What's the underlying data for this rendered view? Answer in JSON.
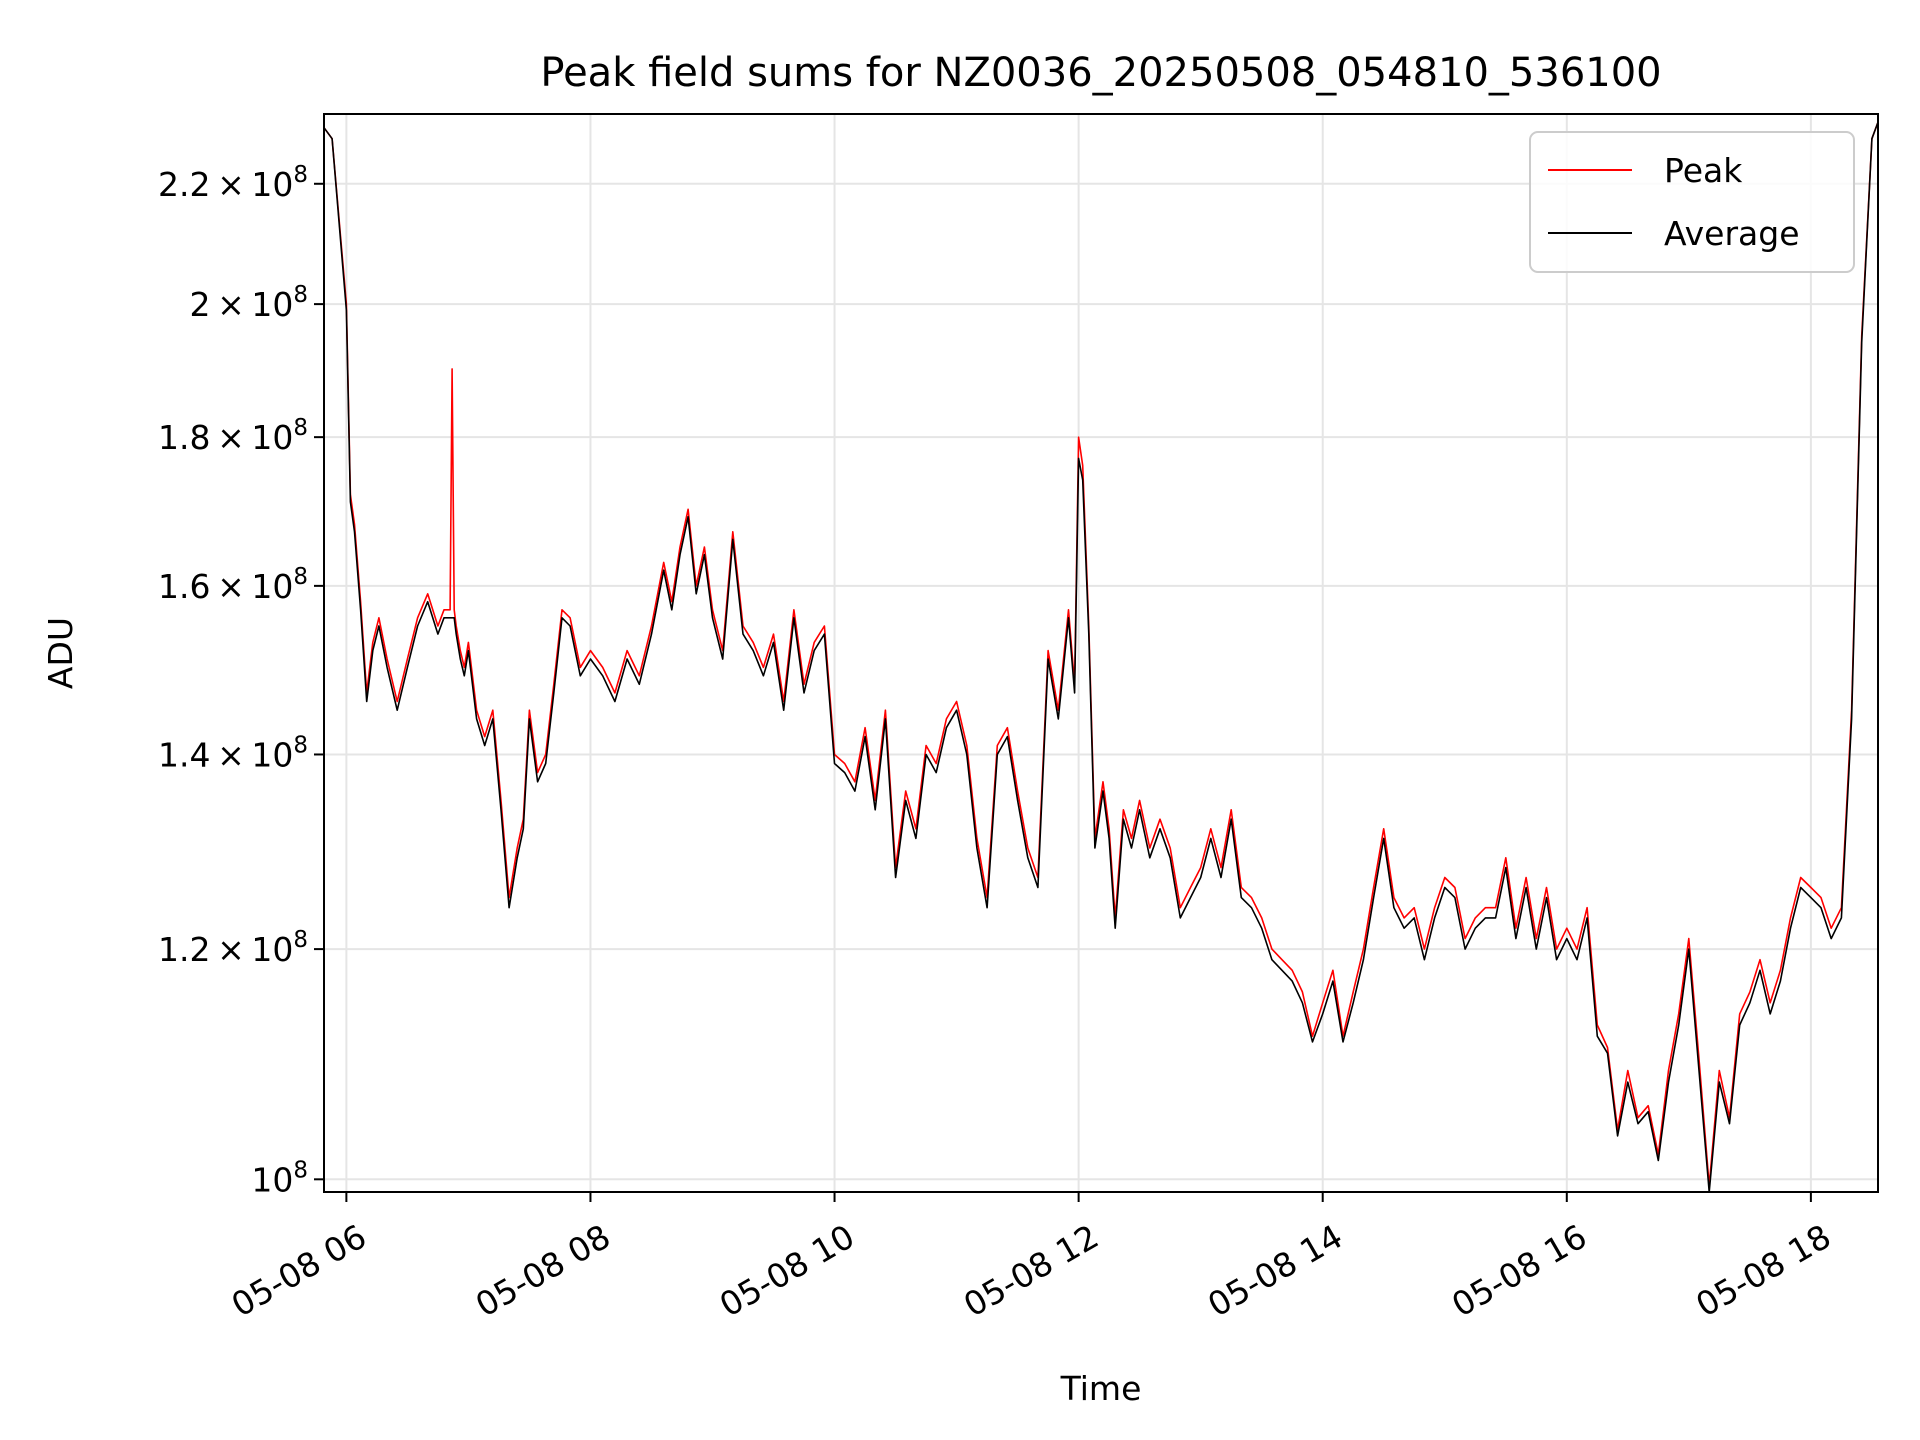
{
  "chart_data": {
    "type": "line",
    "title": "Peak field sums for NZ0036_20250508_054810_536100",
    "xlabel": "Time",
    "ylabel": "ADU",
    "y_scale": "log",
    "grid": true,
    "legend_placement": "top-right",
    "xlim": [
      "2025-05-08T05:49",
      "2025-05-08T18:33"
    ],
    "ylim": [
      99000000,
      232500000
    ],
    "x_ticks": [
      {
        "value": "2025-05-08T06:00",
        "label": "05-08 06"
      },
      {
        "value": "2025-05-08T08:00",
        "label": "05-08 08"
      },
      {
        "value": "2025-05-08T10:00",
        "label": "05-08 10"
      },
      {
        "value": "2025-05-08T12:00",
        "label": "05-08 12"
      },
      {
        "value": "2025-05-08T14:00",
        "label": "05-08 14"
      },
      {
        "value": "2025-05-08T16:00",
        "label": "05-08 16"
      },
      {
        "value": "2025-05-08T18:00",
        "label": "05-08 18"
      }
    ],
    "y_ticks": [
      {
        "value": 100000000,
        "mantissa": "",
        "exp": "8"
      },
      {
        "value": 120000000,
        "mantissa": "1.2",
        "exp": "8"
      },
      {
        "value": 140000000,
        "mantissa": "1.4",
        "exp": "8"
      },
      {
        "value": 160000000,
        "mantissa": "1.6",
        "exp": "8"
      },
      {
        "value": 180000000,
        "mantissa": "1.8",
        "exp": "8"
      },
      {
        "value": 200000000,
        "mantissa": "2",
        "exp": "8"
      },
      {
        "value": 220000000,
        "mantissa": "2.2",
        "exp": "8"
      }
    ],
    "series": [
      {
        "name": "Peak",
        "color": "#ff0000",
        "x": [
          "05:49",
          "05:53",
          "06:00",
          "06:02",
          "06:04",
          "06:07",
          "06:10",
          "06:13",
          "06:16",
          "06:20",
          "06:25",
          "06:30",
          "06:35",
          "06:40",
          "06:45",
          "06:48",
          "06:51",
          "06:52",
          "06:53",
          "06:54",
          "06:56",
          "06:58",
          "07:00",
          "07:04",
          "07:08",
          "07:12",
          "07:16",
          "07:20",
          "07:24",
          "07:27",
          "07:30",
          "07:34",
          "07:38",
          "07:42",
          "07:46",
          "07:50",
          "07:55",
          "08:00",
          "08:06",
          "08:12",
          "08:18",
          "08:24",
          "08:30",
          "08:36",
          "08:40",
          "08:44",
          "08:48",
          "08:52",
          "08:56",
          "09:00",
          "09:05",
          "09:10",
          "09:15",
          "09:20",
          "09:25",
          "09:30",
          "09:35",
          "09:40",
          "09:45",
          "09:50",
          "09:55",
          "10:00",
          "10:05",
          "10:10",
          "10:15",
          "10:20",
          "10:25",
          "10:30",
          "10:35",
          "10:40",
          "10:45",
          "10:50",
          "10:55",
          "11:00",
          "11:05",
          "11:10",
          "11:15",
          "11:20",
          "11:25",
          "11:30",
          "11:35",
          "11:40",
          "11:45",
          "11:50",
          "11:55",
          "11:58",
          "12:00",
          "12:02",
          "12:05",
          "12:08",
          "12:12",
          "12:15",
          "12:18",
          "12:22",
          "12:26",
          "12:30",
          "12:35",
          "12:40",
          "12:45",
          "12:50",
          "12:55",
          "13:00",
          "13:05",
          "13:10",
          "13:15",
          "13:20",
          "13:25",
          "13:30",
          "13:35",
          "13:40",
          "13:45",
          "13:50",
          "13:55",
          "14:00",
          "14:05",
          "14:10",
          "14:15",
          "14:20",
          "14:25",
          "14:30",
          "14:35",
          "14:40",
          "14:45",
          "14:50",
          "14:55",
          "15:00",
          "15:05",
          "15:10",
          "15:15",
          "15:20",
          "15:25",
          "15:30",
          "15:35",
          "15:40",
          "15:45",
          "15:50",
          "15:55",
          "16:00",
          "16:05",
          "16:10",
          "16:15",
          "16:20",
          "16:25",
          "16:30",
          "16:35",
          "16:40",
          "16:45",
          "16:50",
          "16:55",
          "17:00",
          "17:05",
          "17:10",
          "17:15",
          "17:20",
          "17:25",
          "17:30",
          "17:35",
          "17:40",
          "17:45",
          "17:50",
          "17:55",
          "18:00",
          "18:05",
          "18:10",
          "18:15",
          "18:20",
          "18:25",
          "18:30",
          "18:33"
        ],
        "values": [
          230000000,
          228000000,
          200000000,
          172000000,
          168000000,
          158000000,
          147000000,
          153000000,
          156000000,
          151000000,
          146000000,
          151000000,
          156000000,
          159000000,
          155000000,
          157000000,
          157000000,
          190000000,
          157000000,
          155000000,
          152000000,
          150000000,
          153000000,
          145000000,
          142000000,
          145000000,
          135000000,
          125000000,
          130000000,
          133000000,
          145000000,
          138000000,
          140000000,
          148000000,
          157000000,
          156000000,
          150000000,
          152000000,
          150000000,
          147000000,
          152000000,
          149000000,
          155000000,
          163000000,
          158000000,
          165000000,
          170000000,
          160000000,
          165000000,
          157000000,
          152000000,
          167000000,
          155000000,
          153000000,
          150000000,
          154000000,
          146000000,
          157000000,
          148000000,
          153000000,
          155000000,
          140000000,
          139000000,
          137000000,
          143000000,
          135000000,
          145000000,
          128000000,
          136000000,
          132000000,
          141000000,
          139000000,
          144000000,
          146000000,
          141000000,
          131000000,
          125000000,
          141000000,
          143000000,
          136000000,
          130000000,
          127000000,
          152000000,
          145000000,
          157000000,
          148000000,
          180000000,
          176000000,
          155000000,
          131000000,
          137000000,
          132000000,
          123000000,
          134000000,
          131000000,
          135000000,
          130000000,
          133000000,
          130000000,
          124000000,
          126000000,
          128000000,
          132000000,
          128000000,
          134000000,
          126000000,
          125000000,
          123000000,
          120000000,
          119000000,
          118000000,
          116000000,
          112000000,
          115000000,
          118000000,
          112000000,
          116000000,
          120000000,
          126000000,
          132000000,
          125000000,
          123000000,
          124000000,
          120000000,
          124000000,
          127000000,
          126000000,
          121000000,
          123000000,
          124000000,
          124000000,
          129000000,
          122000000,
          127000000,
          121000000,
          126000000,
          120000000,
          122000000,
          120000000,
          124000000,
          113000000,
          111000000,
          104000000,
          109000000,
          105000000,
          106000000,
          102000000,
          109000000,
          114000000,
          121000000,
          110000000,
          99500000,
          109000000,
          105000000,
          114000000,
          116000000,
          119000000,
          115000000,
          118000000,
          123000000,
          127000000,
          126000000,
          125000000,
          122000000,
          124000000,
          145000000,
          195000000,
          228000000,
          231000000
        ]
      },
      {
        "name": "Average",
        "color": "#000000",
        "x": [
          "05:49",
          "05:53",
          "06:00",
          "06:02",
          "06:04",
          "06:07",
          "06:10",
          "06:13",
          "06:16",
          "06:20",
          "06:25",
          "06:30",
          "06:35",
          "06:40",
          "06:45",
          "06:48",
          "06:51",
          "06:52",
          "06:53",
          "06:54",
          "06:56",
          "06:58",
          "07:00",
          "07:04",
          "07:08",
          "07:12",
          "07:16",
          "07:20",
          "07:24",
          "07:27",
          "07:30",
          "07:34",
          "07:38",
          "07:42",
          "07:46",
          "07:50",
          "07:55",
          "08:00",
          "08:06",
          "08:12",
          "08:18",
          "08:24",
          "08:30",
          "08:36",
          "08:40",
          "08:44",
          "08:48",
          "08:52",
          "08:56",
          "09:00",
          "09:05",
          "09:10",
          "09:15",
          "09:20",
          "09:25",
          "09:30",
          "09:35",
          "09:40",
          "09:45",
          "09:50",
          "09:55",
          "10:00",
          "10:05",
          "10:10",
          "10:15",
          "10:20",
          "10:25",
          "10:30",
          "10:35",
          "10:40",
          "10:45",
          "10:50",
          "10:55",
          "11:00",
          "11:05",
          "11:10",
          "11:15",
          "11:20",
          "11:25",
          "11:30",
          "11:35",
          "11:40",
          "11:45",
          "11:50",
          "11:55",
          "11:58",
          "12:00",
          "12:02",
          "12:05",
          "12:08",
          "12:12",
          "12:15",
          "12:18",
          "12:22",
          "12:26",
          "12:30",
          "12:35",
          "12:40",
          "12:45",
          "12:50",
          "12:55",
          "13:00",
          "13:05",
          "13:10",
          "13:15",
          "13:20",
          "13:25",
          "13:30",
          "13:35",
          "13:40",
          "13:45",
          "13:50",
          "13:55",
          "14:00",
          "14:05",
          "14:10",
          "14:15",
          "14:20",
          "14:25",
          "14:30",
          "14:35",
          "14:40",
          "14:45",
          "14:50",
          "14:55",
          "15:00",
          "15:05",
          "15:10",
          "15:15",
          "15:20",
          "15:25",
          "15:30",
          "15:35",
          "15:40",
          "15:45",
          "15:50",
          "15:55",
          "16:00",
          "16:05",
          "16:10",
          "16:15",
          "16:20",
          "16:25",
          "16:30",
          "16:35",
          "16:40",
          "16:45",
          "16:50",
          "16:55",
          "17:00",
          "17:05",
          "17:10",
          "17:15",
          "17:20",
          "17:25",
          "17:30",
          "17:35",
          "17:40",
          "17:45",
          "17:50",
          "17:55",
          "18:00",
          "18:05",
          "18:10",
          "18:15",
          "18:20",
          "18:25",
          "18:30",
          "18:33"
        ],
        "values": [
          230000000,
          228000000,
          199000000,
          171000000,
          167000000,
          157000000,
          146000000,
          152000000,
          155000000,
          150000000,
          145000000,
          150000000,
          155000000,
          158000000,
          154000000,
          156000000,
          156000000,
          156000000,
          156000000,
          154000000,
          151000000,
          149000000,
          152000000,
          144000000,
          141000000,
          144000000,
          134000000,
          124000000,
          129000000,
          132000000,
          144000000,
          137000000,
          139000000,
          147000000,
          156000000,
          155000000,
          149000000,
          151000000,
          149000000,
          146000000,
          151000000,
          148000000,
          154000000,
          162000000,
          157000000,
          164000000,
          169000000,
          159000000,
          164000000,
          156000000,
          151000000,
          166000000,
          154000000,
          152000000,
          149000000,
          153000000,
          145000000,
          156000000,
          147000000,
          152000000,
          154000000,
          139000000,
          138000000,
          136000000,
          142000000,
          134000000,
          144000000,
          127000000,
          135000000,
          131000000,
          140000000,
          138000000,
          143000000,
          145000000,
          140000000,
          130000000,
          124000000,
          140000000,
          142000000,
          135000000,
          129000000,
          126000000,
          151000000,
          144000000,
          156000000,
          147000000,
          177000000,
          174000000,
          154000000,
          130000000,
          136000000,
          131000000,
          122000000,
          133000000,
          130000000,
          134000000,
          129000000,
          132000000,
          129000000,
          123000000,
          125000000,
          127000000,
          131000000,
          127000000,
          133000000,
          125000000,
          124000000,
          122000000,
          119000000,
          118000000,
          117000000,
          115000000,
          111500000,
          114000000,
          117000000,
          111500000,
          115000000,
          119000000,
          125000000,
          131000000,
          124000000,
          122000000,
          123000000,
          119000000,
          123000000,
          126000000,
          125000000,
          120000000,
          122000000,
          123000000,
          123000000,
          128000000,
          121000000,
          126000000,
          120000000,
          125000000,
          119000000,
          121000000,
          119000000,
          123000000,
          112000000,
          110500000,
          103500000,
          108000000,
          104500000,
          105500000,
          101500000,
          108000000,
          113000000,
          120000000,
          109000000,
          99000000,
          108000000,
          104500000,
          113000000,
          115000000,
          118000000,
          114000000,
          117000000,
          122000000,
          126000000,
          125000000,
          124000000,
          121000000,
          123000000,
          144000000,
          194000000,
          228000000,
          231000000
        ]
      }
    ]
  }
}
